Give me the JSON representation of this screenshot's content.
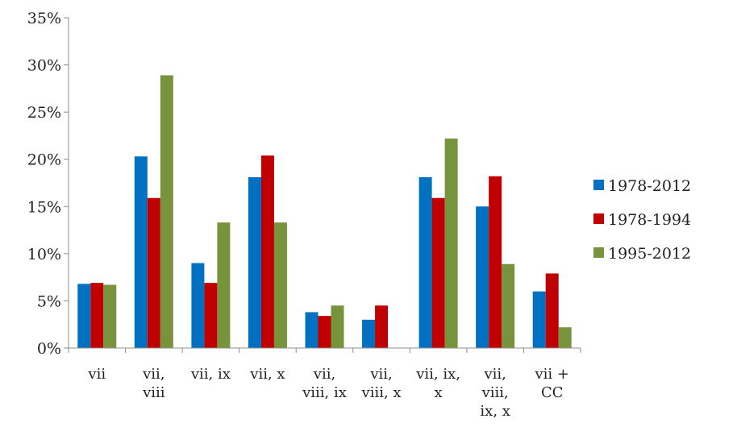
{
  "chart_data": {
    "type": "bar",
    "title": "",
    "xlabel": "",
    "ylabel": "",
    "ylim": [
      0,
      35
    ],
    "yticks": [
      "0%",
      "5%",
      "10%",
      "15%",
      "20%",
      "25%",
      "30%",
      "35%"
    ],
    "grid": false,
    "legend_position": "right",
    "categories": [
      [
        "vii"
      ],
      [
        "vii,",
        "viii"
      ],
      [
        "vii, ix"
      ],
      [
        "vii, x"
      ],
      [
        "vii,",
        "viii, ix"
      ],
      [
        "vii,",
        "viii, x"
      ],
      [
        "vii, ix,",
        "x"
      ],
      [
        "vii,",
        "viii,",
        "ix, x"
      ],
      [
        "vii +",
        "CC"
      ]
    ],
    "series": [
      {
        "name": "1978-2012",
        "color": "#0070C0",
        "values": [
          6.8,
          20.3,
          9.0,
          18.1,
          3.8,
          3.0,
          18.1,
          15.0,
          6.0
        ]
      },
      {
        "name": "1978-1994",
        "color": "#C00000",
        "values": [
          6.9,
          15.9,
          6.9,
          20.4,
          3.4,
          4.5,
          15.9,
          18.2,
          7.9
        ]
      },
      {
        "name": "1995-2012",
        "color": "#77933C",
        "values": [
          6.7,
          28.9,
          13.3,
          13.3,
          4.5,
          0,
          22.2,
          8.9,
          2.2
        ]
      }
    ]
  }
}
